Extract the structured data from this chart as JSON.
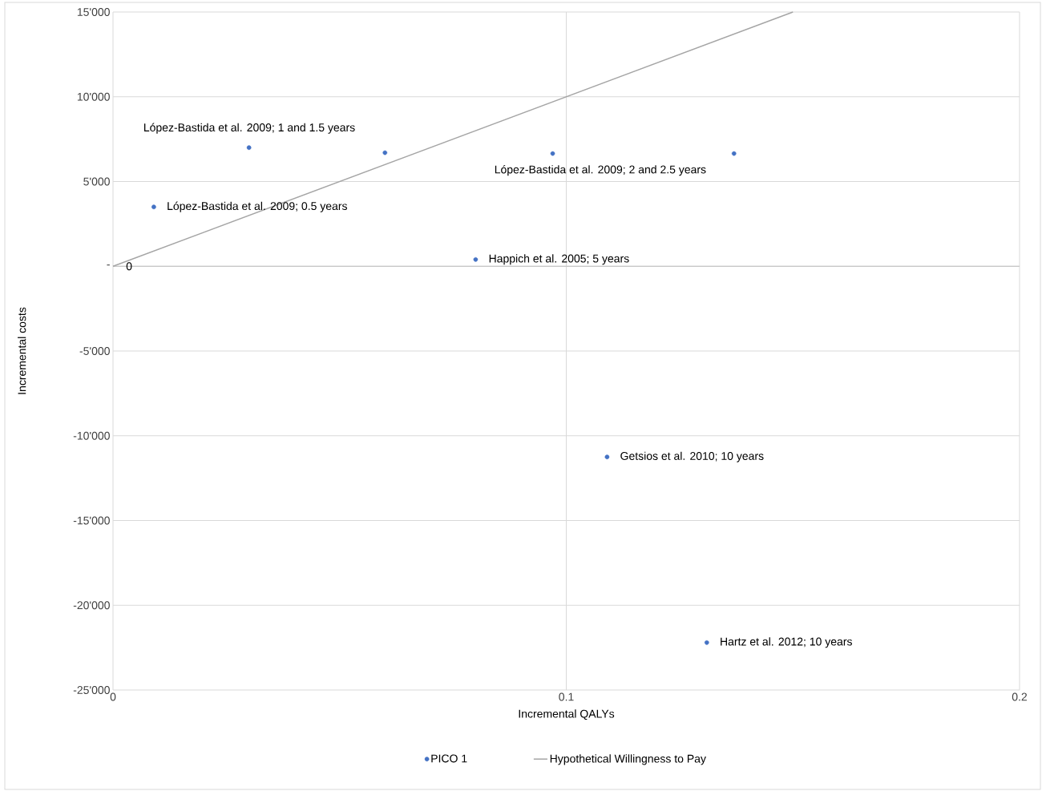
{
  "chart_data": {
    "type": "scatter",
    "xlabel": "Incremental QALYs",
    "ylabel": "Incremental costs",
    "series": [
      {
        "name": "PICO 1",
        "marker": "circle",
        "color": "#4472c4",
        "x": [
          0.009,
          0.03,
          0.06,
          0.08,
          0.097,
          0.109,
          0.137,
          0.131
        ],
        "values": [
          3500,
          7000,
          6700,
          400,
          6650,
          -11250,
          6650,
          -22200
        ]
      },
      {
        "name": "Hypothetical Willingness to Pay",
        "type": "line",
        "marker": "none",
        "color": "#a5a5a5",
        "x": [
          0,
          0.15
        ],
        "values": [
          0,
          15000
        ]
      }
    ],
    "xlim": [
      0,
      0.2
    ],
    "xticks": [
      0,
      0.1,
      0.2
    ],
    "ylim": [
      -25000,
      15000
    ],
    "yticks": [
      {
        "value": -25000,
        "label": "-25'000"
      },
      {
        "value": -20000,
        "label": "-20'000"
      },
      {
        "value": -15000,
        "label": "-15'000"
      },
      {
        "value": -10000,
        "label": "-10'000"
      },
      {
        "value": -5000,
        "label": "-5'000"
      },
      {
        "value": 0,
        "label": "-"
      },
      {
        "value": 5000,
        "label": "5'000"
      },
      {
        "value": 10000,
        "label": "10'000"
      },
      {
        "value": 15000,
        "label": "15'000"
      }
    ],
    "annotations": [
      {
        "text": "López-Bastida et al. 2009; 1 and 1.5 years",
        "x": 0.03,
        "y": 7000
      },
      {
        "text": "López-Bastida et al. 2009; 0.5 years",
        "x": 0.009,
        "y": 3500
      },
      {
        "text": "López-Bastida et al. 2009;  2 and 2.5 years",
        "x": 0.097,
        "y": 6650
      },
      {
        "text": "Happich et al. 2005; 5 years",
        "x": 0.08,
        "y": 400
      },
      {
        "text": "Getsios et al. 2010; 10 years",
        "x": 0.109,
        "y": -11250
      },
      {
        "text": "Hartz et al. 2012; 10 years",
        "x": 0.131,
        "y": -22200
      },
      {
        "text": "0",
        "x": 0,
        "y": 0
      }
    ],
    "grid": true,
    "legend": "bottom"
  }
}
